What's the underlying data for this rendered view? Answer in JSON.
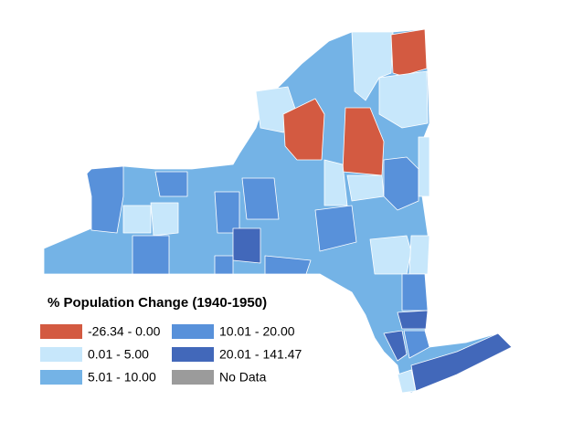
{
  "legend": {
    "title": "% Population Change (1940-1950)",
    "items": [
      {
        "label": "-26.34 - 0.00",
        "color": "#d35a41"
      },
      {
        "label": "0.01 - 5.00",
        "color": "#c7e7fb"
      },
      {
        "label": "5.01 - 10.00",
        "color": "#74b3e6"
      },
      {
        "label": "10.01 - 20.00",
        "color": "#5891da"
      },
      {
        "label": "20.01 - 141.47",
        "color": "#4268ba"
      },
      {
        "label": "No Data",
        "color": "#9b9b9b"
      }
    ]
  }
}
